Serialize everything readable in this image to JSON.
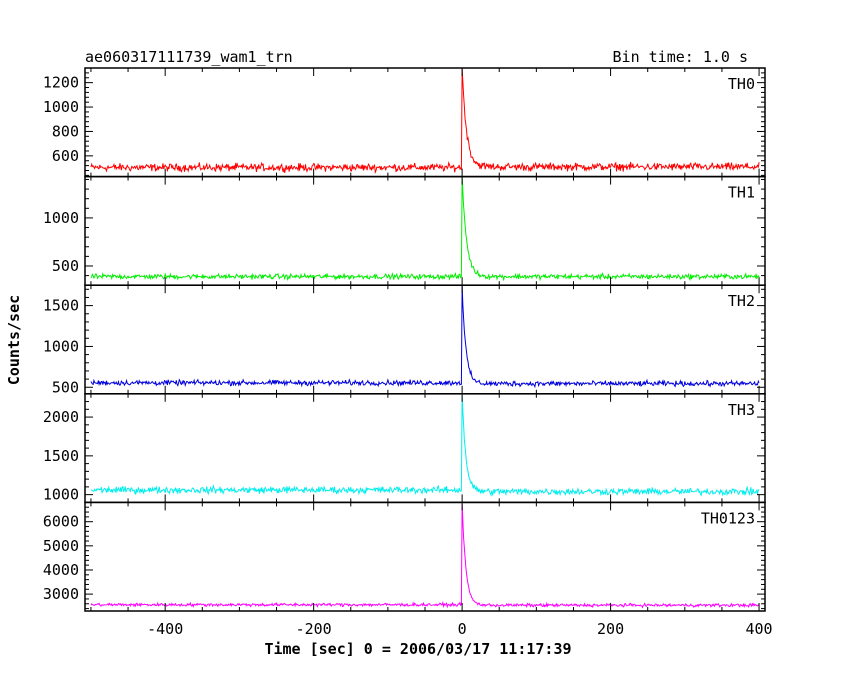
{
  "chart_data": {
    "type": "line",
    "title_left": "ae060317111739_wam1_trn",
    "title_right": "Bin time: 1.0 s",
    "xlabel": "Time [sec] 0 = 2006/03/17 11:17:39",
    "ylabel": "Counts/sec",
    "xlim": [
      -508,
      408
    ],
    "xticks": [
      -400,
      -200,
      0,
      200,
      400
    ],
    "x_range": [
      -500,
      400
    ],
    "bin_time": 1.0,
    "grid": false,
    "panels": [
      {
        "name": "TH0",
        "color": "#ff0000",
        "ylim": [
          430,
          1320
        ],
        "yticks": [
          600,
          800,
          1000,
          1200
        ],
        "baseline_pre": 505,
        "baseline_post": 510,
        "noise": 22,
        "peak": 1320,
        "peak_time": 0,
        "decay_sec": 6
      },
      {
        "name": "TH1",
        "color": "#00ee00",
        "ylim": [
          300,
          1430
        ],
        "yticks": [
          500,
          1000
        ],
        "baseline_pre": 390,
        "baseline_post": 390,
        "noise": 18,
        "peak": 1430,
        "peak_time": 0,
        "decay_sec": 6
      },
      {
        "name": "TH2",
        "color": "#0000dd",
        "ylim": [
          420,
          1750
        ],
        "yticks": [
          500,
          1000,
          1500
        ],
        "baseline_pre": 555,
        "baseline_post": 545,
        "noise": 22,
        "peak": 1750,
        "peak_time": 0,
        "decay_sec": 5
      },
      {
        "name": "TH3",
        "color": "#00eeee",
        "ylim": [
          900,
          2300
        ],
        "yticks": [
          1000,
          1500,
          2000
        ],
        "baseline_pre": 1060,
        "baseline_post": 1040,
        "noise": 30,
        "peak": 2300,
        "peak_time": 0,
        "decay_sec": 5
      },
      {
        "name": "TH0123",
        "color": "#ff00ff",
        "ylim": [
          2300,
          6800
        ],
        "yticks": [
          3000,
          4000,
          5000,
          6000
        ],
        "baseline_pre": 2560,
        "baseline_post": 2540,
        "noise": 45,
        "peak": 6800,
        "peak_time": 0,
        "decay_sec": 5
      }
    ]
  }
}
